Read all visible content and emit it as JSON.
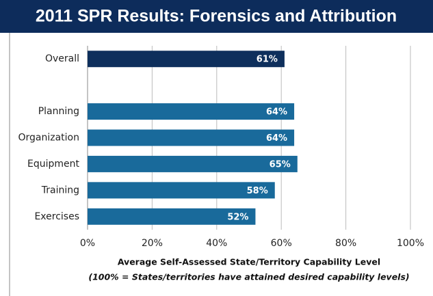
{
  "chart_data": {
    "type": "hbar",
    "title": "2011 SPR Results: Forensics and Attribution",
    "categories": [
      "Overall",
      null,
      "Planning",
      "Organization",
      "Equipment",
      "Training",
      "Exercises"
    ],
    "values": [
      61,
      null,
      64,
      64,
      65,
      58,
      52
    ],
    "value_labels": [
      "61%",
      null,
      "64%",
      "64%",
      "65%",
      "58%",
      "52%"
    ],
    "colors": [
      "#0e2f5c",
      null,
      "#196a9b",
      "#196a9b",
      "#196a9b",
      "#196a9b",
      "#196a9b"
    ],
    "xlim": [
      0,
      100
    ],
    "xticks": [
      {
        "value": 0,
        "label": "0%"
      },
      {
        "value": 20,
        "label": "20%"
      },
      {
        "value": 40,
        "label": "40%"
      },
      {
        "value": 60,
        "label": "60%"
      },
      {
        "value": 80,
        "label": "80%"
      },
      {
        "value": 100,
        "label": "100%"
      }
    ],
    "grid": true,
    "xlabel": "Average Self-Assessed State/Territory Capability Level",
    "xlabel_note": "(100% = States/territories  have attained desired capability levels)"
  }
}
